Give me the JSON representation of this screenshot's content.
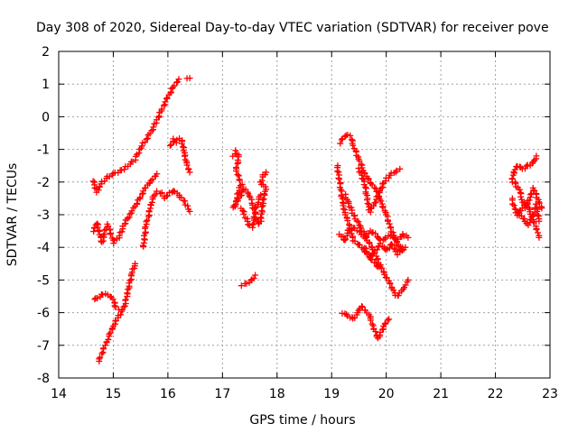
{
  "chart_data": {
    "type": "scatter",
    "title": "Day 308 of 2020, Sidereal Day-to-day VTEC variation (SDTVAR) for receiver pove",
    "xlabel": "GPS time / hours",
    "ylabel": "SDTVAR / TECUs",
    "xlim": [
      14,
      23
    ],
    "ylim": [
      -8,
      2
    ],
    "xticks": [
      "14",
      "15",
      "16",
      "17",
      "18",
      "19",
      "20",
      "21",
      "22",
      "23"
    ],
    "yticks": [
      "-8",
      "-7",
      "-6",
      "-5",
      "-4",
      "-3",
      "-2",
      "-1",
      "0",
      "1",
      "2"
    ],
    "grid": true,
    "legend": "none",
    "marker": "plus",
    "marker_color": "#ff0000",
    "series": [
      {
        "segments": [
          [
            [
              14.63,
              -1.95
            ],
            [
              14.7,
              -2.3
            ],
            [
              14.8,
              -2.0
            ],
            [
              14.9,
              -1.85
            ],
            [
              15.0,
              -1.75
            ],
            [
              15.2,
              -1.6
            ],
            [
              15.4,
              -1.3
            ],
            [
              15.5,
              -0.95
            ],
            [
              15.6,
              -0.7
            ],
            [
              15.7,
              -0.45
            ],
            [
              15.8,
              -0.1
            ],
            [
              15.9,
              0.25
            ],
            [
              16.0,
              0.6
            ],
            [
              16.1,
              0.9
            ],
            [
              16.2,
              1.15
            ]
          ],
          [
            [
              16.35,
              1.2
            ],
            [
              16.4,
              1.18
            ]
          ]
        ]
      },
      {
        "segments": [
          [
            [
              14.63,
              -3.5
            ],
            [
              14.7,
              -3.25
            ],
            [
              14.75,
              -3.6
            ],
            [
              14.8,
              -3.85
            ],
            [
              14.85,
              -3.5
            ],
            [
              14.9,
              -3.3
            ],
            [
              14.95,
              -3.55
            ],
            [
              15.0,
              -3.85
            ],
            [
              15.1,
              -3.7
            ],
            [
              15.2,
              -3.3
            ],
            [
              15.3,
              -3.0
            ],
            [
              15.4,
              -2.75
            ],
            [
              15.5,
              -2.45
            ],
            [
              15.6,
              -2.15
            ],
            [
              15.7,
              -1.95
            ],
            [
              15.8,
              -1.75
            ]
          ]
        ]
      },
      {
        "segments": [
          [
            [
              14.65,
              -5.6
            ],
            [
              14.75,
              -5.5
            ],
            [
              14.85,
              -5.4
            ],
            [
              14.9,
              -5.45
            ],
            [
              15.0,
              -5.6
            ],
            [
              15.05,
              -5.85
            ],
            [
              15.1,
              -5.9
            ]
          ],
          [
            [
              14.73,
              -7.5
            ],
            [
              14.8,
              -7.2
            ],
            [
              14.9,
              -6.8
            ],
            [
              15.0,
              -6.4
            ],
            [
              15.1,
              -6.1
            ],
            [
              15.2,
              -5.85
            ],
            [
              15.3,
              -5.1
            ],
            [
              15.35,
              -4.75
            ],
            [
              15.4,
              -4.5
            ]
          ]
        ]
      },
      {
        "segments": [
          [
            [
              15.55,
              -4.0
            ],
            [
              15.6,
              -3.3
            ],
            [
              15.65,
              -3.0
            ],
            [
              15.7,
              -2.6
            ],
            [
              15.75,
              -2.4
            ],
            [
              15.8,
              -2.3
            ],
            [
              15.9,
              -2.35
            ],
            [
              15.95,
              -2.5
            ],
            [
              16.0,
              -2.4
            ],
            [
              16.1,
              -2.25
            ],
            [
              16.2,
              -2.4
            ],
            [
              16.3,
              -2.6
            ],
            [
              16.35,
              -2.75
            ],
            [
              16.4,
              -2.9
            ]
          ]
        ]
      },
      {
        "segments": [
          [
            [
              16.05,
              -0.9
            ],
            [
              16.1,
              -0.7
            ],
            [
              16.15,
              -0.8
            ],
            [
              16.2,
              -0.65
            ],
            [
              16.25,
              -0.7
            ],
            [
              16.3,
              -1.1
            ],
            [
              16.35,
              -1.5
            ],
            [
              16.4,
              -1.7
            ]
          ]
        ]
      },
      {
        "segments": [
          [
            [
              17.2,
              -1.2
            ],
            [
              17.25,
              -1.05
            ],
            [
              17.3,
              -1.25
            ],
            [
              17.25,
              -1.6
            ],
            [
              17.3,
              -1.9
            ],
            [
              17.35,
              -2.05
            ],
            [
              17.3,
              -2.25
            ],
            [
              17.25,
              -2.6
            ],
            [
              17.2,
              -2.8
            ],
            [
              17.3,
              -2.5
            ],
            [
              17.4,
              -2.2
            ],
            [
              17.5,
              -2.4
            ],
            [
              17.55,
              -2.7
            ],
            [
              17.6,
              -3.0
            ],
            [
              17.65,
              -3.3
            ],
            [
              17.7,
              -3.2
            ],
            [
              17.75,
              -2.5
            ],
            [
              17.8,
              -2.2
            ],
            [
              17.7,
              -2.0
            ],
            [
              17.75,
              -1.8
            ],
            [
              17.8,
              -1.7
            ]
          ],
          [
            [
              17.35,
              -2.8
            ],
            [
              17.4,
              -3.0
            ],
            [
              17.5,
              -3.35
            ],
            [
              17.55,
              -3.4
            ],
            [
              17.6,
              -2.9
            ],
            [
              17.65,
              -2.6
            ],
            [
              17.7,
              -2.4
            ]
          ]
        ]
      },
      {
        "segments": [
          [
            [
              17.35,
              -5.15
            ],
            [
              17.45,
              -5.1
            ],
            [
              17.55,
              -5.0
            ],
            [
              17.6,
              -4.85
            ]
          ]
        ]
      },
      {
        "segments": [
          [
            [
              19.15,
              -0.8
            ],
            [
              19.2,
              -0.65
            ],
            [
              19.3,
              -0.55
            ],
            [
              19.35,
              -0.6
            ],
            [
              19.4,
              -0.9
            ],
            [
              19.5,
              -1.3
            ],
            [
              19.6,
              -1.7
            ],
            [
              19.7,
              -2.0
            ],
            [
              19.8,
              -2.2
            ],
            [
              19.85,
              -2.35
            ],
            [
              19.9,
              -2.6
            ],
            [
              20.0,
              -3.0
            ],
            [
              20.1,
              -3.5
            ],
            [
              20.2,
              -3.9
            ],
            [
              20.3,
              -4.1
            ],
            [
              20.35,
              -4.0
            ]
          ]
        ]
      },
      {
        "segments": [
          [
            [
              19.1,
              -1.5
            ],
            [
              19.15,
              -2.0
            ],
            [
              19.2,
              -2.6
            ],
            [
              19.25,
              -3.0
            ],
            [
              19.3,
              -3.2
            ],
            [
              19.35,
              -3.5
            ],
            [
              19.4,
              -3.8
            ],
            [
              19.5,
              -3.9
            ],
            [
              19.6,
              -4.1
            ],
            [
              19.7,
              -4.3
            ],
            [
              19.8,
              -4.5
            ],
            [
              19.85,
              -4.6
            ]
          ]
        ]
      },
      {
        "segments": [
          [
            [
              19.25,
              -2.4
            ],
            [
              19.3,
              -2.6
            ],
            [
              19.4,
              -3.0
            ],
            [
              19.5,
              -3.3
            ],
            [
              19.6,
              -3.6
            ],
            [
              19.7,
              -3.9
            ],
            [
              19.8,
              -4.2
            ],
            [
              19.9,
              -4.6
            ],
            [
              20.0,
              -4.9
            ],
            [
              20.1,
              -5.2
            ],
            [
              20.15,
              -5.4
            ],
            [
              20.2,
              -5.5
            ],
            [
              20.3,
              -5.3
            ],
            [
              20.35,
              -5.15
            ],
            [
              20.4,
              -5.0
            ]
          ]
        ]
      },
      {
        "segments": [
          [
            [
              19.5,
              -1.6
            ],
            [
              19.6,
              -2.0
            ],
            [
              19.65,
              -2.5
            ],
            [
              19.7,
              -2.9
            ],
            [
              19.8,
              -2.6
            ],
            [
              19.9,
              -2.2
            ],
            [
              20.0,
              -1.9
            ],
            [
              20.1,
              -1.75
            ],
            [
              20.2,
              -1.65
            ],
            [
              20.25,
              -1.6
            ]
          ]
        ]
      },
      {
        "segments": [
          [
            [
              19.15,
              -3.6
            ],
            [
              19.25,
              -3.8
            ],
            [
              19.3,
              -3.5
            ],
            [
              19.4,
              -3.4
            ],
            [
              19.5,
              -3.5
            ],
            [
              19.6,
              -3.7
            ],
            [
              19.7,
              -3.5
            ],
            [
              19.8,
              -3.6
            ],
            [
              19.9,
              -3.8
            ],
            [
              20.0,
              -3.7
            ],
            [
              20.1,
              -3.6
            ],
            [
              20.2,
              -3.8
            ],
            [
              20.3,
              -3.6
            ],
            [
              20.4,
              -3.7
            ]
          ]
        ]
      },
      {
        "segments": [
          [
            [
              19.2,
              -6.0
            ],
            [
              19.3,
              -6.1
            ],
            [
              19.4,
              -6.2
            ],
            [
              19.5,
              -5.95
            ],
            [
              19.55,
              -5.8
            ],
            [
              19.6,
              -5.9
            ],
            [
              19.7,
              -6.1
            ],
            [
              19.75,
              -6.4
            ],
            [
              19.8,
              -6.6
            ],
            [
              19.85,
              -6.8
            ],
            [
              19.9,
              -6.6
            ],
            [
              20.0,
              -6.3
            ],
            [
              20.05,
              -6.2
            ]
          ]
        ]
      },
      {
        "segments": [
          [
            [
              19.6,
              -4.0
            ],
            [
              19.7,
              -4.3
            ],
            [
              19.8,
              -4.1
            ],
            [
              19.9,
              -3.9
            ],
            [
              20.0,
              -4.1
            ],
            [
              20.1,
              -3.9
            ],
            [
              20.2,
              -4.2
            ],
            [
              20.3,
              -4.0
            ]
          ]
        ]
      },
      {
        "segments": [
          [
            [
              22.3,
              -2.0
            ],
            [
              22.35,
              -1.6
            ],
            [
              22.4,
              -1.5
            ],
            [
              22.5,
              -1.6
            ],
            [
              22.6,
              -1.5
            ],
            [
              22.7,
              -1.4
            ],
            [
              22.75,
              -1.2
            ]
          ],
          [
            [
              22.3,
              -2.5
            ],
            [
              22.35,
              -2.8
            ],
            [
              22.4,
              -3.0
            ],
            [
              22.5,
              -2.8
            ],
            [
              22.6,
              -2.7
            ],
            [
              22.65,
              -3.0
            ],
            [
              22.7,
              -3.2
            ],
            [
              22.75,
              -3.4
            ],
            [
              22.8,
              -3.7
            ]
          ],
          [
            [
              22.35,
              -2.0
            ],
            [
              22.45,
              -2.3
            ],
            [
              22.5,
              -2.6
            ],
            [
              22.55,
              -2.8
            ],
            [
              22.6,
              -2.6
            ],
            [
              22.7,
              -2.2
            ],
            [
              22.8,
              -2.6
            ],
            [
              22.85,
              -2.8
            ]
          ],
          [
            [
              22.4,
              -2.9
            ],
            [
              22.5,
              -3.1
            ],
            [
              22.6,
              -3.3
            ],
            [
              22.7,
              -3.0
            ],
            [
              22.75,
              -2.7
            ],
            [
              22.8,
              -3.2
            ]
          ]
        ]
      }
    ]
  }
}
